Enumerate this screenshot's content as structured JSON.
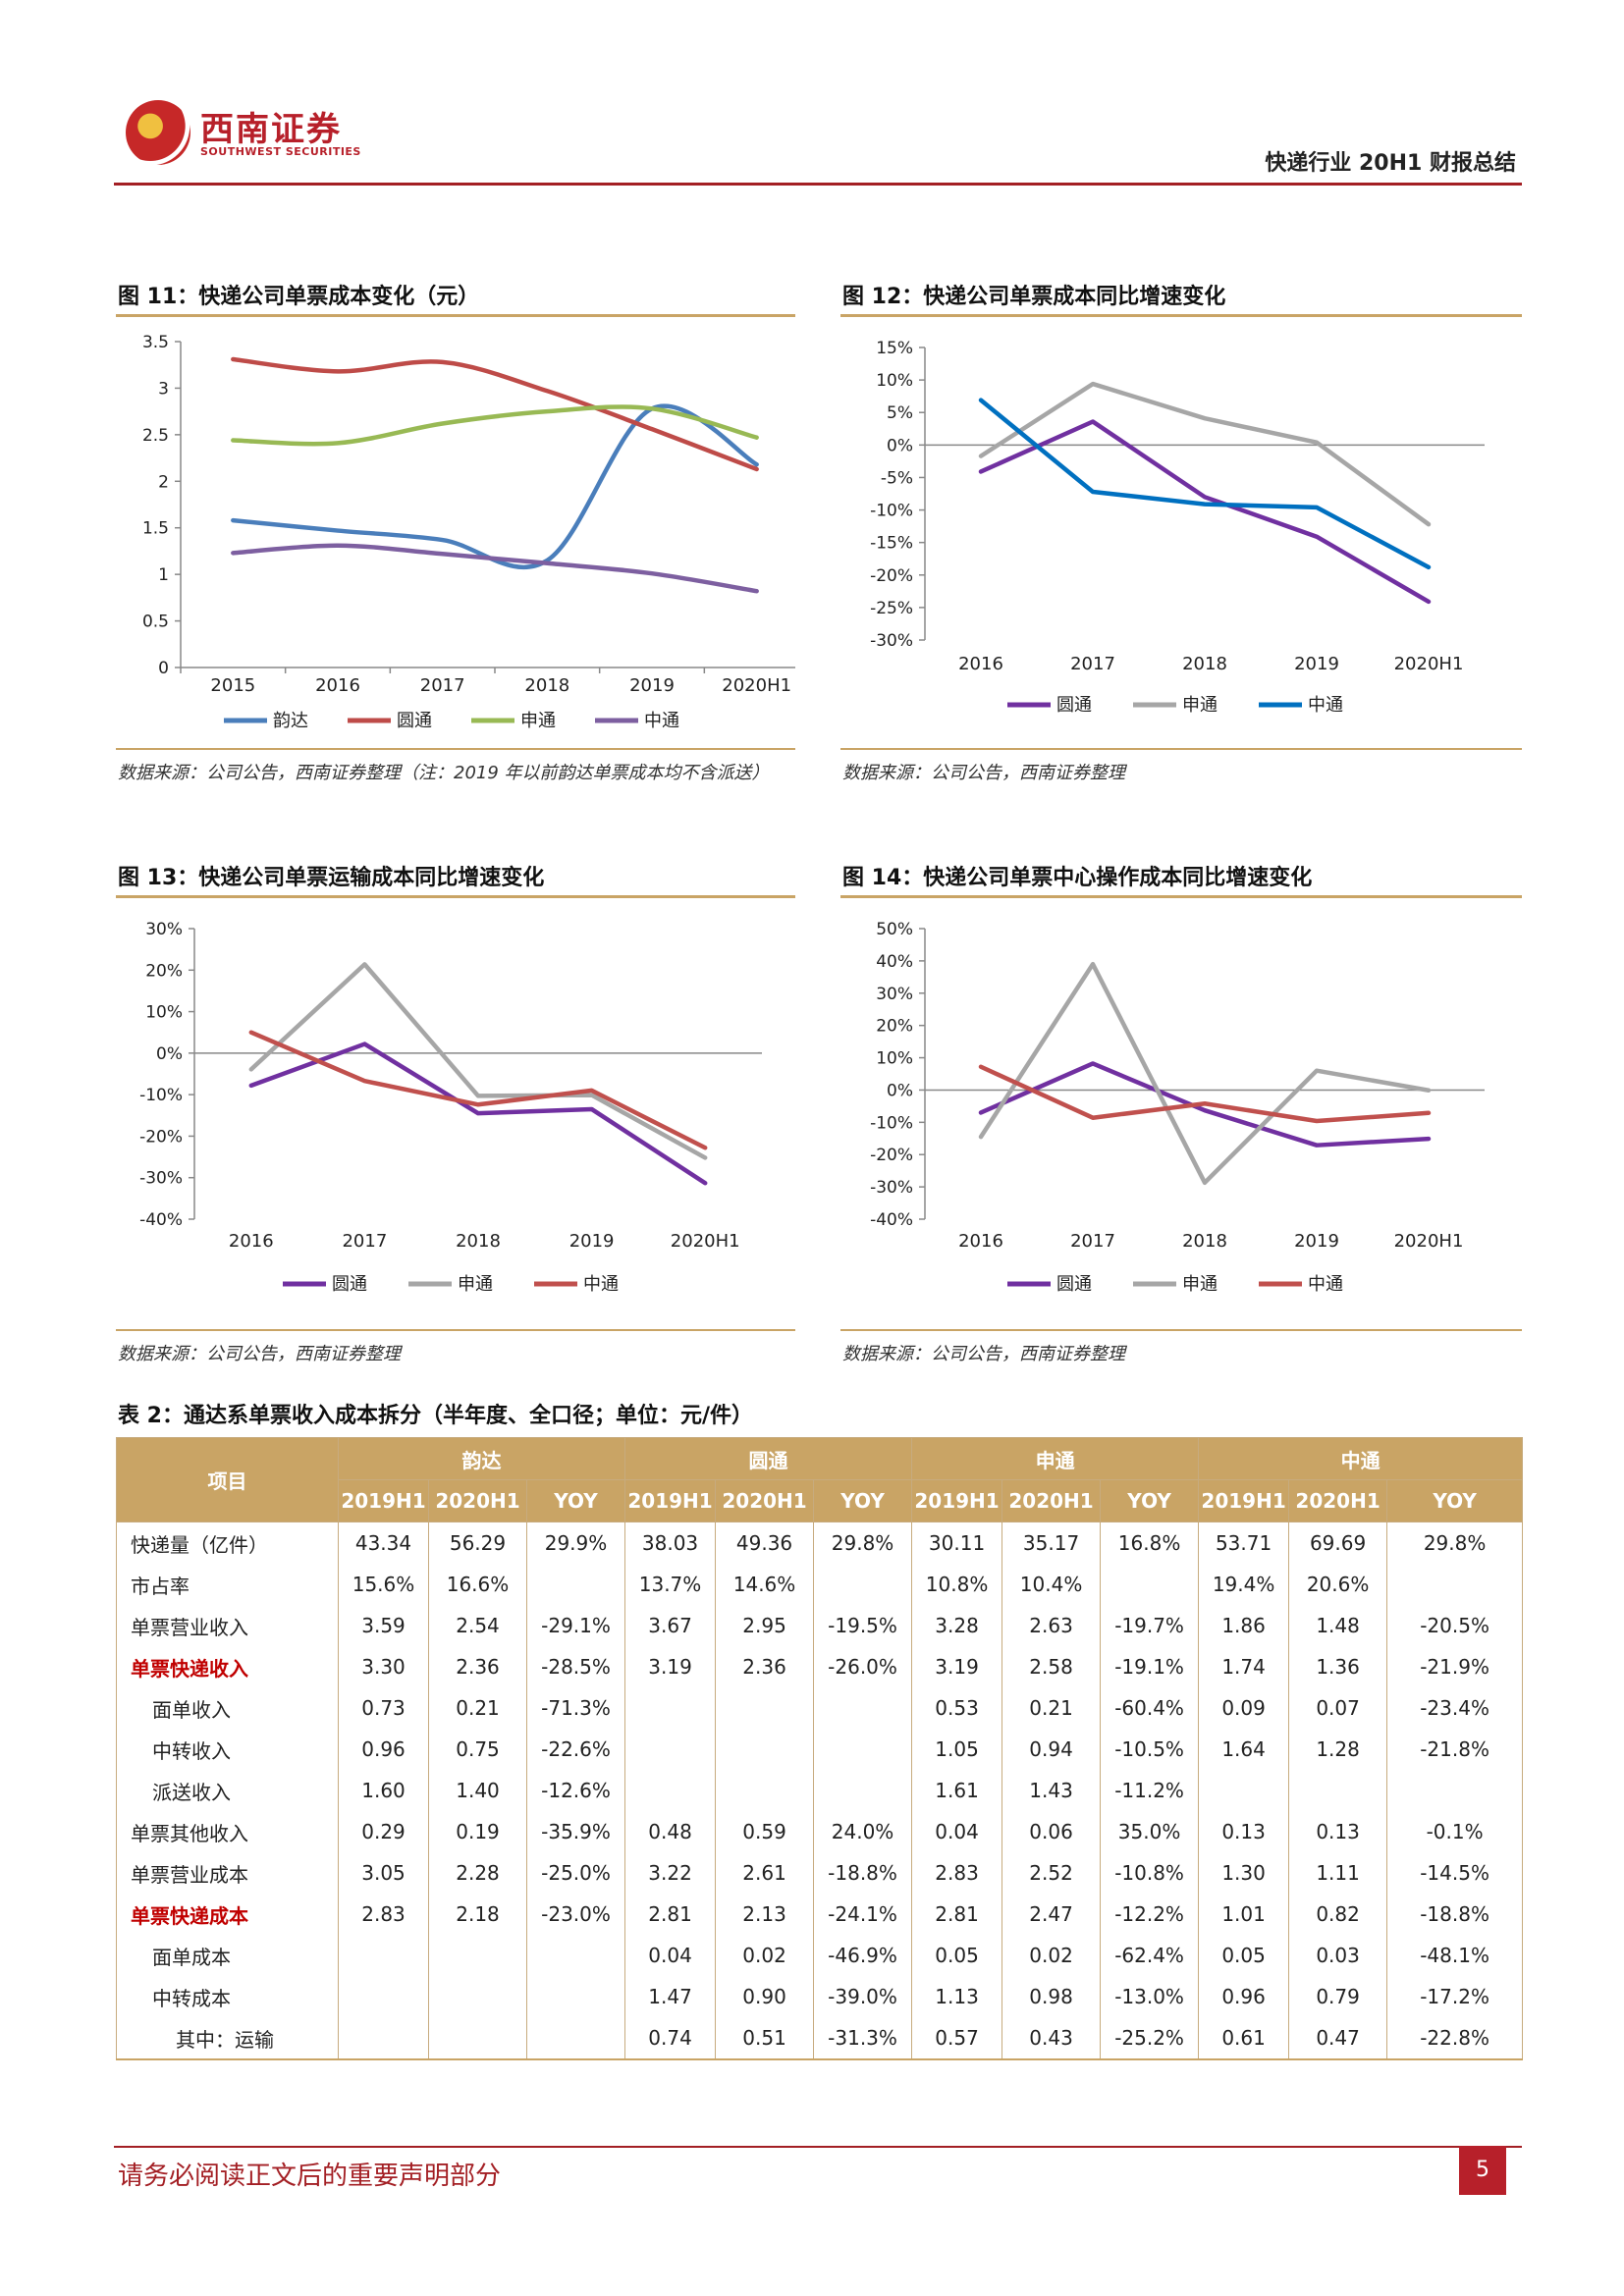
{
  "header": {
    "logo_cn": "西南证券",
    "logo_en": "SOUTHWEST SECURITIES",
    "title": "快递行业 20H1 财报总结"
  },
  "figures": [
    {
      "title": "图 11：快递公司单票成本变化（元）",
      "note": "数据来源：公司公告，西南证券整理（注：2019 年以前韵达单票成本均不含派送）"
    },
    {
      "title": "图 12：快递公司单票成本同比增速变化",
      "note": "数据来源：公司公告，西南证券整理"
    },
    {
      "title": "图 13：快递公司单票运输成本同比增速变化",
      "note": "数据来源：公司公告，西南证券整理"
    },
    {
      "title": "图 14：快递公司单票中心操作成本同比增速变化",
      "note": "数据来源：公司公告，西南证券整理"
    }
  ],
  "chart_data": [
    {
      "type": "line",
      "categories": [
        "2015",
        "2016",
        "2017",
        "2018",
        "2019",
        "2020H1"
      ],
      "ylim": [
        0,
        3.5
      ],
      "yticks": [
        "0",
        "0.5",
        "1",
        "1.5",
        "2",
        "2.5",
        "3",
        "3.5"
      ],
      "smooth": true,
      "grid": false,
      "legend": "bottom",
      "series": [
        {
          "name": "韵达",
          "color": "#4a7ebb",
          "values": [
            1.58,
            1.47,
            1.37,
            1.15,
            2.78,
            2.18
          ]
        },
        {
          "name": "圆通",
          "color": "#be4b48",
          "values": [
            3.31,
            3.18,
            3.28,
            2.97,
            2.56,
            2.13
          ]
        },
        {
          "name": "申通",
          "color": "#98b954",
          "values": [
            2.44,
            2.41,
            2.62,
            2.75,
            2.78,
            2.47
          ]
        },
        {
          "name": "中通",
          "color": "#7d5fa0",
          "values": [
            1.23,
            1.31,
            1.22,
            1.12,
            1.01,
            0.82
          ]
        }
      ]
    },
    {
      "type": "line",
      "categories": [
        "2016",
        "2017",
        "2018",
        "2019",
        "2020H1"
      ],
      "ylim": [
        -30,
        15
      ],
      "yticks": [
        "-30%",
        "-25%",
        "-20%",
        "-15%",
        "-10%",
        "-5%",
        "0%",
        "5%",
        "10%",
        "15%"
      ],
      "grid": false,
      "legend": "bottom",
      "series": [
        {
          "name": "圆通",
          "color": "#7030a0",
          "values": [
            -4.1,
            3.6,
            -8.0,
            -14.1,
            -24.1
          ]
        },
        {
          "name": "申通",
          "color": "#a6a6a6",
          "values": [
            -1.7,
            9.4,
            4.1,
            0.4,
            -12.2
          ]
        },
        {
          "name": "中通",
          "color": "#0070c0",
          "values": [
            6.9,
            -7.2,
            -9.1,
            -9.6,
            -18.8
          ]
        }
      ]
    },
    {
      "type": "line",
      "categories": [
        "2016",
        "2017",
        "2018",
        "2019",
        "2020H1"
      ],
      "ylim": [
        -40,
        30
      ],
      "yticks": [
        "-40%",
        "-30%",
        "-20%",
        "-10%",
        "0%",
        "10%",
        "20%",
        "30%"
      ],
      "grid": false,
      "legend": "bottom",
      "series": [
        {
          "name": "圆通",
          "color": "#7030a0",
          "values": [
            -7.8,
            2.2,
            -14.5,
            -13.5,
            -31.3
          ]
        },
        {
          "name": "申通",
          "color": "#a6a6a6",
          "values": [
            -3.9,
            21.4,
            -10.3,
            -10.1,
            -25.2
          ]
        },
        {
          "name": "中通",
          "color": "#c0504d",
          "values": [
            5.0,
            -6.7,
            -12.4,
            -9.0,
            -22.8
          ]
        }
      ]
    },
    {
      "type": "line",
      "categories": [
        "2016",
        "2017",
        "2018",
        "2019",
        "2020H1"
      ],
      "ylim": [
        -40,
        50
      ],
      "yticks": [
        "-40%",
        "-30%",
        "-20%",
        "-10%",
        "0%",
        "10%",
        "20%",
        "30%",
        "40%",
        "50%"
      ],
      "grid": false,
      "legend": "bottom",
      "series": [
        {
          "name": "圆通",
          "color": "#7030a0",
          "values": [
            -7.0,
            8.2,
            -6.3,
            -17.1,
            -15.1
          ]
        },
        {
          "name": "申通",
          "color": "#a6a6a6",
          "values": [
            -14.5,
            39.0,
            -28.7,
            6.0,
            -0.1
          ]
        },
        {
          "name": "中通",
          "color": "#c0504d",
          "values": [
            7.2,
            -8.6,
            -4.2,
            -9.6,
            -7.1
          ]
        }
      ]
    }
  ],
  "table": {
    "title": "表 2：通达系单票收入成本拆分（半年度、全口径；单位：元/件）",
    "item_header": "项目",
    "groups": [
      "韵达",
      "圆通",
      "申通",
      "中通"
    ],
    "subheaders": [
      "2019H1",
      "2020H1",
      "YOY"
    ],
    "rows": [
      {
        "label": "快递量（亿件）",
        "cells": [
          "43.34",
          "56.29",
          "29.9%",
          "38.03",
          "49.36",
          "29.8%",
          "30.11",
          "35.17",
          "16.8%",
          "53.71",
          "69.69",
          "29.8%"
        ]
      },
      {
        "label": "市占率",
        "cells": [
          "15.6%",
          "16.6%",
          "",
          "13.7%",
          "14.6%",
          "",
          "10.8%",
          "10.4%",
          "",
          "19.4%",
          "20.6%",
          ""
        ]
      },
      {
        "label": "单票营业收入",
        "cells": [
          "3.59",
          "2.54",
          "-29.1%",
          "3.67",
          "2.95",
          "-19.5%",
          "3.28",
          "2.63",
          "-19.7%",
          "1.86",
          "1.48",
          "-20.5%"
        ]
      },
      {
        "label": "单票快递收入",
        "cells": [
          "3.30",
          "2.36",
          "-28.5%",
          "3.19",
          "2.36",
          "-26.0%",
          "3.19",
          "2.58",
          "-19.1%",
          "1.74",
          "1.36",
          "-21.9%"
        ]
      },
      {
        "label": "面单收入",
        "cells": [
          "0.73",
          "0.21",
          "-71.3%",
          "",
          "",
          "",
          "0.53",
          "0.21",
          "-60.4%",
          "0.09",
          "0.07",
          "-23.4%"
        ]
      },
      {
        "label": "中转收入",
        "cells": [
          "0.96",
          "0.75",
          "-22.6%",
          "",
          "",
          "",
          "1.05",
          "0.94",
          "-10.5%",
          "1.64",
          "1.28",
          "-21.8%"
        ]
      },
      {
        "label": "派送收入",
        "cells": [
          "1.60",
          "1.40",
          "-12.6%",
          "",
          "",
          "",
          "1.61",
          "1.43",
          "-11.2%",
          "",
          "",
          ""
        ]
      },
      {
        "label": "单票其他收入",
        "cells": [
          "0.29",
          "0.19",
          "-35.9%",
          "0.48",
          "0.59",
          "24.0%",
          "0.04",
          "0.06",
          "35.0%",
          "0.13",
          "0.13",
          "-0.1%"
        ]
      },
      {
        "label": "单票营业成本",
        "cells": [
          "3.05",
          "2.28",
          "-25.0%",
          "3.22",
          "2.61",
          "-18.8%",
          "2.83",
          "2.52",
          "-10.8%",
          "1.30",
          "1.11",
          "-14.5%"
        ]
      },
      {
        "label": "单票快递成本",
        "cells": [
          "2.83",
          "2.18",
          "-23.0%",
          "2.81",
          "2.13",
          "-24.1%",
          "2.81",
          "2.47",
          "-12.2%",
          "1.01",
          "0.82",
          "-18.8%"
        ]
      },
      {
        "label": "面单成本",
        "cells": [
          "",
          "",
          "",
          "0.04",
          "0.02",
          "-46.9%",
          "0.05",
          "0.02",
          "-62.4%",
          "0.05",
          "0.03",
          "-48.1%"
        ]
      },
      {
        "label": "中转成本",
        "cells": [
          "",
          "",
          "",
          "1.47",
          "0.90",
          "-39.0%",
          "1.13",
          "0.98",
          "-13.0%",
          "0.96",
          "0.79",
          "-17.2%"
        ]
      },
      {
        "label": "其中：运输",
        "cells": [
          "",
          "",
          "",
          "0.74",
          "0.51",
          "-31.3%",
          "0.57",
          "0.43",
          "-25.2%",
          "0.61",
          "0.47",
          "-22.8%"
        ]
      }
    ]
  },
  "footer": {
    "disclaimer": "请务必阅读正文后的重要声明部分",
    "page": "5"
  }
}
